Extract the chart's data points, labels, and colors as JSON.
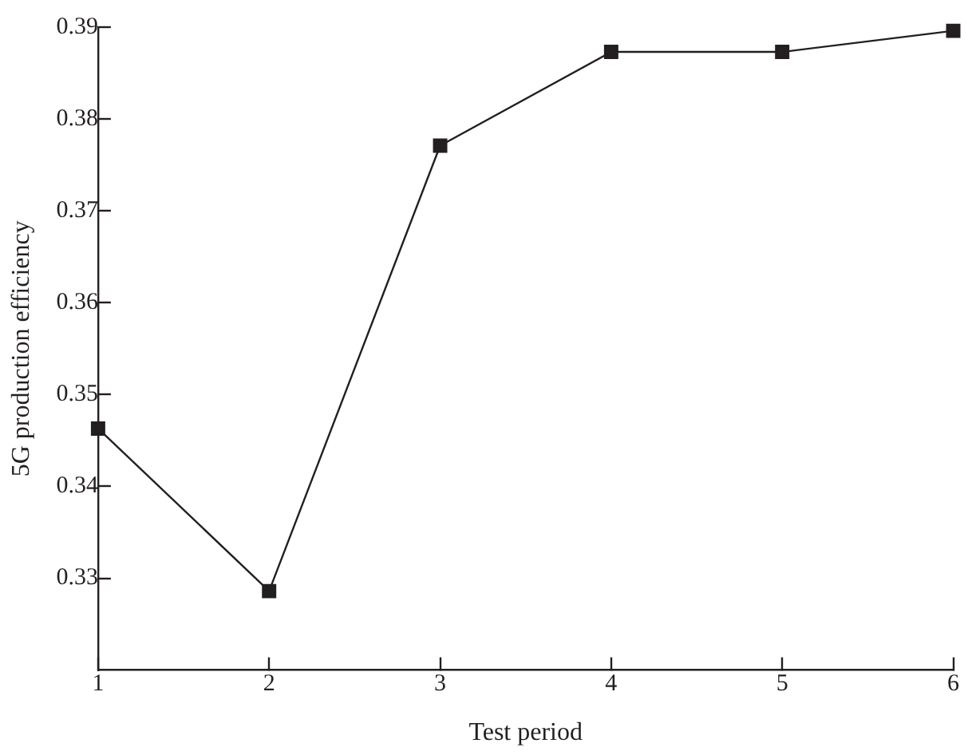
{
  "chart_data": {
    "type": "line",
    "xlabel": "Test period",
    "ylabel": "5G production efficiency",
    "x": [
      1,
      2,
      3,
      4,
      5,
      6
    ],
    "series": [
      {
        "color": "#231f20",
        "values": [
          0.3463,
          0.3286,
          0.3771,
          0.3873,
          0.3873,
          0.3896
        ]
      }
    ],
    "xlim": [
      1,
      6
    ],
    "xticks": [
      1,
      2,
      3,
      4,
      5,
      6
    ],
    "ylim": [
      0.32,
      0.39
    ],
    "yticks": [
      0.33,
      0.34,
      0.35,
      0.36,
      0.37,
      0.38,
      0.39
    ],
    "grid": false,
    "legend": false,
    "marker": "square",
    "line_style": "solid"
  }
}
